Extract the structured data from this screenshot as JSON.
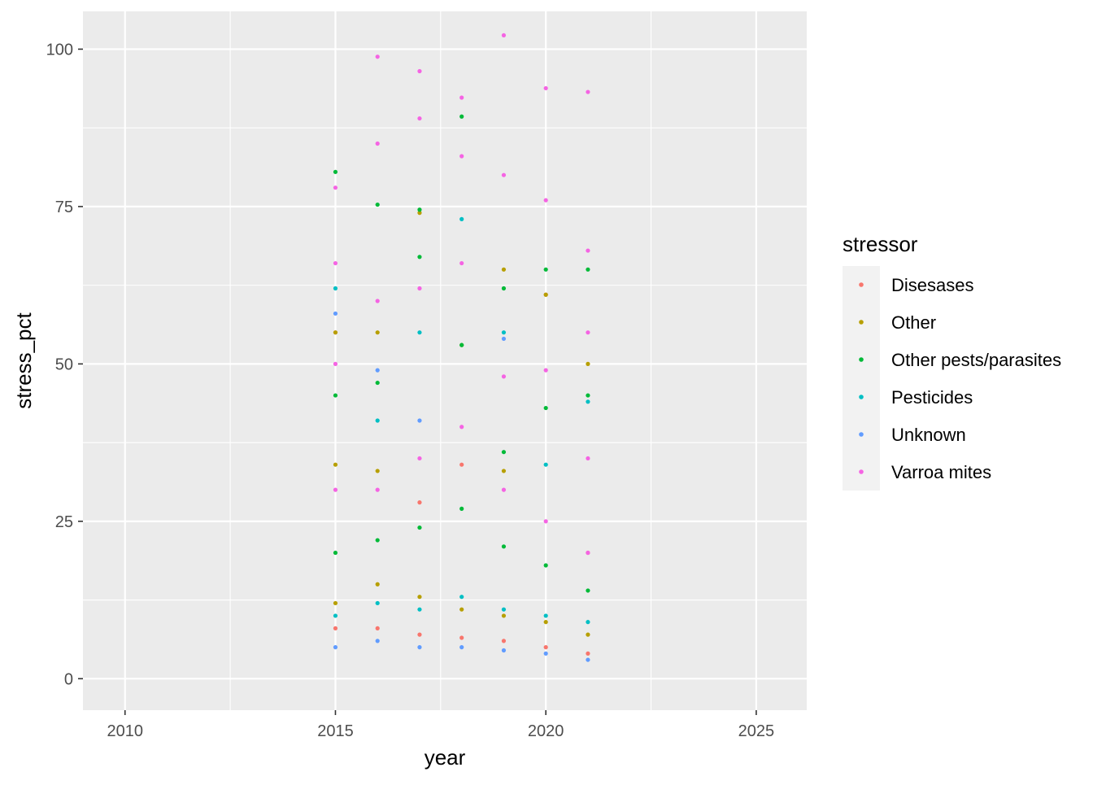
{
  "chart_data": {
    "type": "scatter",
    "title": "",
    "xlabel": "year",
    "ylabel": "stress_pct",
    "xlim": [
      2009,
      2026.2
    ],
    "ylim": [
      -5,
      106
    ],
    "x_ticks": [
      2010,
      2015,
      2020,
      2025
    ],
    "y_ticks": [
      0,
      25,
      50,
      75,
      100
    ],
    "x_tick_labels": [
      "2010",
      "2015",
      "2020",
      "2025"
    ],
    "y_tick_labels": [
      "0",
      "25",
      "50",
      "75",
      "100"
    ],
    "grid": true,
    "background": "#EBEBEB",
    "legend": {
      "title": "stressor",
      "position": "right",
      "entries": [
        "Disesases",
        "Other",
        "Other pests/parasites",
        "Pesticides",
        "Unknown",
        "Varroa mites"
      ]
    },
    "series": [
      {
        "name": "Disesases",
        "color": "#F8766D",
        "points": [
          [
            2015.0,
            8.0
          ],
          [
            2015.0,
            55.0
          ],
          [
            2016.0,
            8.0
          ],
          [
            2017.0,
            7.0
          ],
          [
            2017.0,
            28.0
          ],
          [
            2018.0,
            6.5
          ],
          [
            2018.0,
            34.0
          ],
          [
            2019.0,
            6.0
          ],
          [
            2020.0,
            5.0
          ],
          [
            2020.0,
            61.0
          ],
          [
            2021.0,
            4.0
          ],
          [
            2021.0,
            20.0
          ]
        ]
      },
      {
        "name": "Other",
        "color": "#B79F00",
        "points": [
          [
            2015.0,
            12.0
          ],
          [
            2015.0,
            34.0
          ],
          [
            2015.0,
            55.0
          ],
          [
            2016.0,
            15.0
          ],
          [
            2016.0,
            33.0
          ],
          [
            2016.0,
            55.0
          ],
          [
            2017.0,
            13.0
          ],
          [
            2017.0,
            74.0
          ],
          [
            2018.0,
            11.0
          ],
          [
            2018.0,
            53.0
          ],
          [
            2019.0,
            10.0
          ],
          [
            2019.0,
            33.0
          ],
          [
            2019.0,
            65.0
          ],
          [
            2020.0,
            9.0
          ],
          [
            2020.0,
            61.0
          ],
          [
            2021.0,
            7.0
          ],
          [
            2021.0,
            50.0
          ]
        ]
      },
      {
        "name": "Other pests/parasites",
        "color": "#00BA38",
        "points": [
          [
            2015.0,
            20.0
          ],
          [
            2015.0,
            45.0
          ],
          [
            2015.0,
            80.5
          ],
          [
            2016.0,
            22.0
          ],
          [
            2016.0,
            47.0
          ],
          [
            2016.0,
            75.3
          ],
          [
            2017.0,
            24.0
          ],
          [
            2017.0,
            67.0
          ],
          [
            2017.0,
            74.5
          ],
          [
            2018.0,
            27.0
          ],
          [
            2018.0,
            53.0
          ],
          [
            2018.0,
            89.3
          ],
          [
            2019.0,
            21.0
          ],
          [
            2019.0,
            36.0
          ],
          [
            2019.0,
            62.0
          ],
          [
            2020.0,
            18.0
          ],
          [
            2020.0,
            43.0
          ],
          [
            2020.0,
            65.0
          ],
          [
            2021.0,
            14.0
          ],
          [
            2021.0,
            45.0
          ],
          [
            2021.0,
            65.0
          ]
        ]
      },
      {
        "name": "Pesticides",
        "color": "#00BFC4",
        "points": [
          [
            2015.0,
            10.0
          ],
          [
            2015.0,
            62.0
          ],
          [
            2016.0,
            12.0
          ],
          [
            2016.0,
            41.0
          ],
          [
            2017.0,
            11.0
          ],
          [
            2017.0,
            55.0
          ],
          [
            2018.0,
            13.0
          ],
          [
            2018.0,
            73.0
          ],
          [
            2019.0,
            11.0
          ],
          [
            2019.0,
            55.0
          ],
          [
            2020.0,
            10.0
          ],
          [
            2020.0,
            34.0
          ],
          [
            2021.0,
            9.0
          ],
          [
            2021.0,
            44.0
          ]
        ]
      },
      {
        "name": "Unknown",
        "color": "#619CFF",
        "points": [
          [
            2015.0,
            5.0
          ],
          [
            2015.0,
            58.0
          ],
          [
            2016.0,
            6.0
          ],
          [
            2016.0,
            49.0
          ],
          [
            2017.0,
            5.0
          ],
          [
            2017.0,
            41.0
          ],
          [
            2018.0,
            5.0
          ],
          [
            2019.0,
            4.5
          ],
          [
            2019.0,
            54.0
          ],
          [
            2020.0,
            4.0
          ],
          [
            2021.0,
            3.0
          ]
        ]
      },
      {
        "name": "Varroa mites",
        "color": "#F564E3",
        "points": [
          [
            2015.0,
            30.0
          ],
          [
            2015.0,
            50.0
          ],
          [
            2015.0,
            66.0
          ],
          [
            2015.0,
            78.0
          ],
          [
            2016.0,
            30.0
          ],
          [
            2016.0,
            60.0
          ],
          [
            2016.0,
            85.0
          ],
          [
            2016.0,
            98.8
          ],
          [
            2017.0,
            35.0
          ],
          [
            2017.0,
            62.0
          ],
          [
            2017.0,
            89.0
          ],
          [
            2017.0,
            96.5
          ],
          [
            2018.0,
            40.0
          ],
          [
            2018.0,
            66.0
          ],
          [
            2018.0,
            83.0
          ],
          [
            2018.0,
            92.3
          ],
          [
            2019.0,
            30.0
          ],
          [
            2019.0,
            48.0
          ],
          [
            2019.0,
            80.0
          ],
          [
            2019.0,
            102.2
          ],
          [
            2020.0,
            25.0
          ],
          [
            2020.0,
            49.0
          ],
          [
            2020.0,
            76.0
          ],
          [
            2020.0,
            93.8
          ],
          [
            2021.0,
            20.0
          ],
          [
            2021.0,
            35.0
          ],
          [
            2021.0,
            55.0
          ],
          [
            2021.0,
            68.0
          ],
          [
            2021.0,
            93.2
          ]
        ]
      }
    ]
  }
}
